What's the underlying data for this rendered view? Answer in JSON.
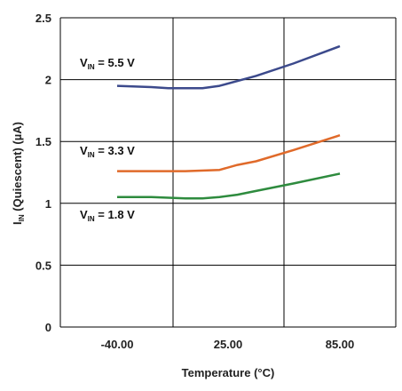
{
  "chart_data": {
    "type": "line",
    "xlabel": "Temperature (°C)",
    "ylabel_main": "I",
    "ylabel_sub": "IN",
    "ylabel_rest": " (Quiescent) (µA)",
    "ylim": [
      0,
      2.5
    ],
    "y_ticks": [
      "0",
      "0.5",
      "1",
      "1.5",
      "2",
      "2.5"
    ],
    "x_ticks": [
      "-40.00",
      "25.00",
      "85.00"
    ],
    "grid": true,
    "series": [
      {
        "label_main": "V",
        "label_sub": "IN",
        "label_rest": " = 5.5 V",
        "color": "#3c4a8c",
        "points": [
          [
            -40,
            1.95
          ],
          [
            -20,
            1.94
          ],
          [
            -10,
            1.93
          ],
          [
            0,
            1.93
          ],
          [
            10,
            1.93
          ],
          [
            20,
            1.95
          ],
          [
            40,
            2.03
          ],
          [
            60,
            2.13
          ],
          [
            85,
            2.27
          ]
        ]
      },
      {
        "label_main": "V",
        "label_sub": "IN",
        "label_rest": " = 3.3 V",
        "color": "#e06a2a",
        "points": [
          [
            -40,
            1.26
          ],
          [
            -20,
            1.26
          ],
          [
            0,
            1.26
          ],
          [
            20,
            1.27
          ],
          [
            30,
            1.31
          ],
          [
            40,
            1.34
          ],
          [
            60,
            1.43
          ],
          [
            85,
            1.55
          ]
        ]
      },
      {
        "label_main": "V",
        "label_sub": "IN",
        "label_rest": " = 1.8 V",
        "color": "#2e8b3e",
        "points": [
          [
            -40,
            1.05
          ],
          [
            -20,
            1.05
          ],
          [
            0,
            1.04
          ],
          [
            10,
            1.04
          ],
          [
            20,
            1.05
          ],
          [
            30,
            1.07
          ],
          [
            40,
            1.1
          ],
          [
            60,
            1.16
          ],
          [
            85,
            1.24
          ]
        ]
      }
    ]
  }
}
